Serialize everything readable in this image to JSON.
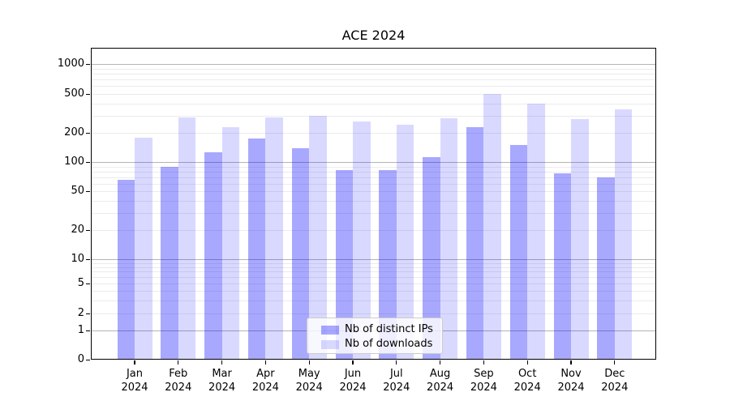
{
  "title": "ACE 2024",
  "chart_data": {
    "type": "bar",
    "title": "ACE 2024",
    "categories": [
      "Jan 2024",
      "Feb 2024",
      "Mar 2024",
      "Apr 2024",
      "May 2024",
      "Jun 2024",
      "Jul 2024",
      "Aug 2024",
      "Sep 2024",
      "Oct 2024",
      "Nov 2024",
      "Dec 2024"
    ],
    "series": [
      {
        "name": "Nb of distinct IPs",
        "color": "rgba(0,0,255,0.34)",
        "values": [
          65,
          90,
          125,
          175,
          140,
          83,
          82,
          112,
          230,
          150,
          76,
          70
        ]
      },
      {
        "name": "Nb of downloads",
        "color": "rgba(0,0,255,0.15)",
        "values": [
          180,
          290,
          230,
          285,
          300,
          260,
          240,
          280,
          500,
          400,
          275,
          350
        ]
      }
    ],
    "y_axis": {
      "scale": "symlog",
      "tick_values": [
        0,
        1,
        2,
        5,
        10,
        20,
        50,
        100,
        200,
        500,
        1000
      ],
      "tick_labels": [
        "0",
        "1",
        "2",
        "5",
        "10",
        "20",
        "50",
        "100",
        "200",
        "500",
        "1000"
      ]
    },
    "legend": {
      "location": "lower-center",
      "entries": [
        "Nb of distinct IPs",
        "Nb of downloads"
      ]
    },
    "grid": true
  }
}
